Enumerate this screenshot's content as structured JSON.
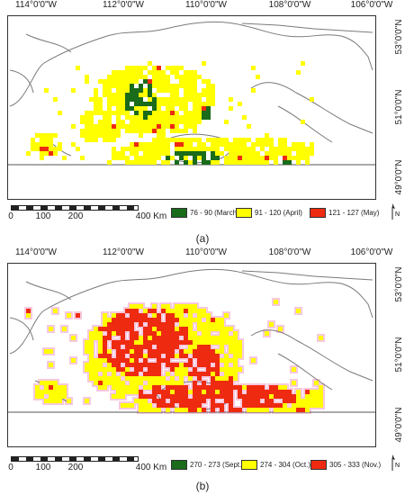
{
  "palette": {
    "boundary": "#7a7a7a",
    "border_line": "#555555",
    "halo": "#f7c8dd",
    "green": "#1a6b1a",
    "yellow": "#ffff00",
    "red": "#ee2a10"
  },
  "panels": [
    {
      "caption": "(a)",
      "lon_labels": [
        "114°0'0\"W",
        "112°0'0\"W",
        "110°0'0\"W",
        "108°0'0\"W",
        "106°0'0\"W"
      ],
      "lat_labels": [
        "53°0'0\"N",
        "51°0'0\"N",
        "49°0'0\"N"
      ],
      "scale_labels": [
        "0",
        "100",
        "200",
        "400 Km"
      ],
      "north_label": "N",
      "legend": [
        {
          "label": "76 - 90 (March)",
          "color": "#1a6b1a"
        },
        {
          "label": "91 - 120 (April)",
          "color": "#ffff00"
        },
        {
          "label": "121 - 127 (May)",
          "color": "#ee2a10"
        }
      ]
    },
    {
      "caption": "(b)",
      "lon_labels": [
        "114°0'0\"W",
        "112°0'0\"W",
        "110°0'0\"W",
        "108°0'0\"W",
        "106°0'0\"W"
      ],
      "lat_labels": [
        "53°0'0\"N",
        "51°0'0\"N",
        "49°0'0\"N"
      ],
      "scale_labels": [
        "0",
        "100",
        "200",
        "400 Km"
      ],
      "north_label": "N",
      "legend": [
        {
          "label": "270 - 273 (Sept.)",
          "color": "#1a6b1a"
        },
        {
          "label": "274 - 304 (Oct.)",
          "color": "#ffff00"
        },
        {
          "label": "305 - 333 (Nov.)",
          "color": "#ee2a10"
        }
      ]
    }
  ]
}
